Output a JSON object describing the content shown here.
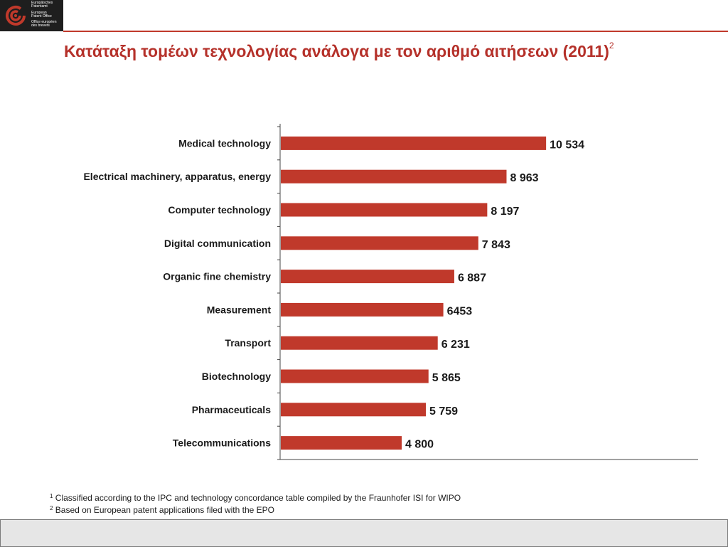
{
  "logo": {
    "lines_de": [
      "Europäisches",
      "Patentamt"
    ],
    "lines_en": [
      "European",
      "Patent Office"
    ],
    "lines_fr": [
      "Office européen",
      "des brevets"
    ]
  },
  "slide": {
    "title": "Κατάταξη τομέων τεχνολογίας ανάλογα με τον αριθμό αιτήσεων (2011)",
    "title_sup": "2"
  },
  "colors": {
    "accent": "#c0392b",
    "title": "#b5312a"
  },
  "chart_data": {
    "type": "bar",
    "orientation": "horizontal",
    "categories": [
      "Medical technology",
      "Electrical machinery, apparatus, energy",
      "Computer technology",
      "Digital communication",
      "Organic fine chemistry",
      "Measurement",
      "Transport",
      "Biotechnology",
      "Pharmaceuticals",
      "Telecommunications"
    ],
    "values": [
      10534,
      8963,
      8197,
      7843,
      6887,
      6453,
      6231,
      5865,
      5759,
      4800
    ],
    "value_labels": [
      "10 534",
      "8 963",
      "8 197",
      "7 843",
      "6 887",
      "6453",
      "6 231",
      "5 865",
      "5 759",
      "4 800"
    ],
    "bar_color": "#c0392b",
    "xlim": [
      0,
      16600
    ],
    "grid": false
  },
  "footnotes": [
    {
      "mark": "1",
      "text": "Classified according to the IPC and technology concordance table compiled by the Fraunhofer ISI for WIPO"
    },
    {
      "mark": "2",
      "text": "Based on European patent applications filed with the EPO"
    }
  ]
}
